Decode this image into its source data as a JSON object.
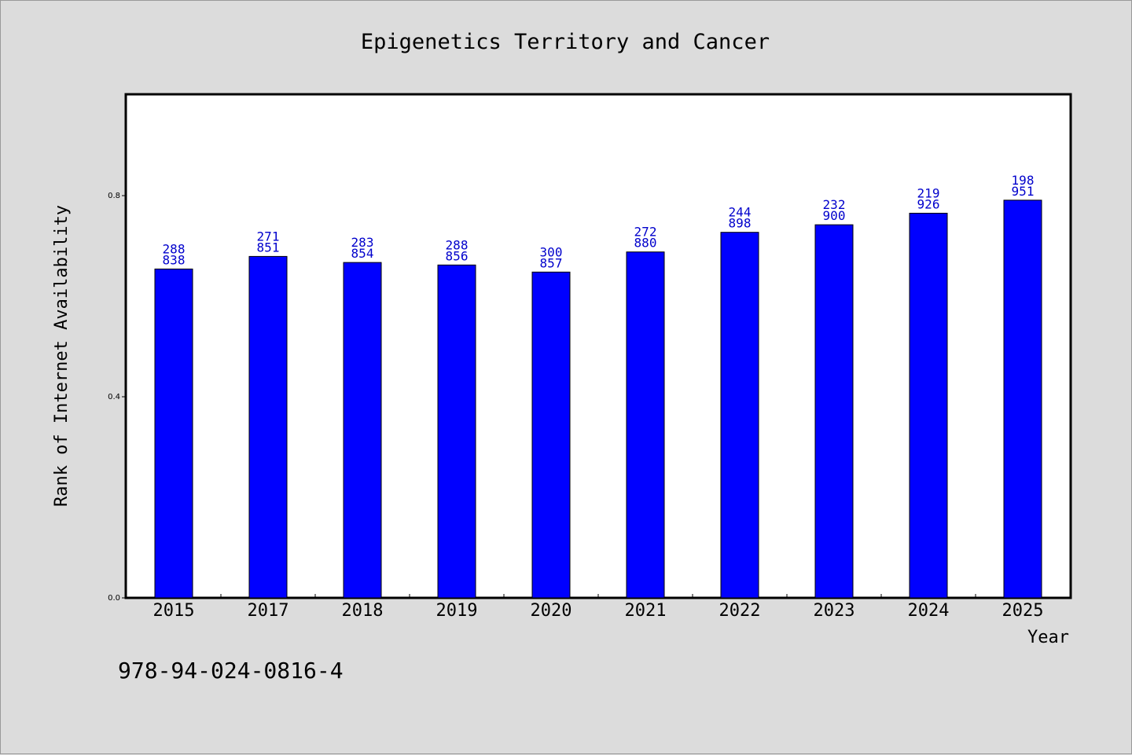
{
  "chart_data": {
    "type": "bar",
    "title": "Epigenetics Territory and Cancer",
    "xlabel": "Year",
    "ylabel": "Rank of Internet Availability",
    "categories": [
      "2015",
      "2017",
      "2018",
      "2019",
      "2020",
      "2021",
      "2022",
      "2023",
      "2024",
      "2025"
    ],
    "values": [
      0.654,
      0.679,
      0.667,
      0.662,
      0.648,
      0.688,
      0.727,
      0.742,
      0.765,
      0.791
    ],
    "data_labels": [
      [
        "288",
        "838"
      ],
      [
        "271",
        "851"
      ],
      [
        "283",
        "854"
      ],
      [
        "288",
        "856"
      ],
      [
        "300",
        "857"
      ],
      [
        "272",
        "880"
      ],
      [
        "244",
        "898"
      ],
      [
        "232",
        "900"
      ],
      [
        "219",
        "926"
      ],
      [
        "198",
        "951"
      ]
    ],
    "yticks": [
      0.0,
      0.4,
      0.8
    ],
    "ytick_labels": [
      "0.0",
      "0.4",
      "0.8"
    ],
    "ylim": [
      0,
      1.0
    ],
    "grid": false,
    "legend": "none",
    "bar_color": "#0000ff",
    "label_color": "#0000cc",
    "background": "#dcdcdc",
    "plot_background": "#ffffff"
  },
  "footer": {
    "isbn": "978-94-024-0816-4"
  }
}
